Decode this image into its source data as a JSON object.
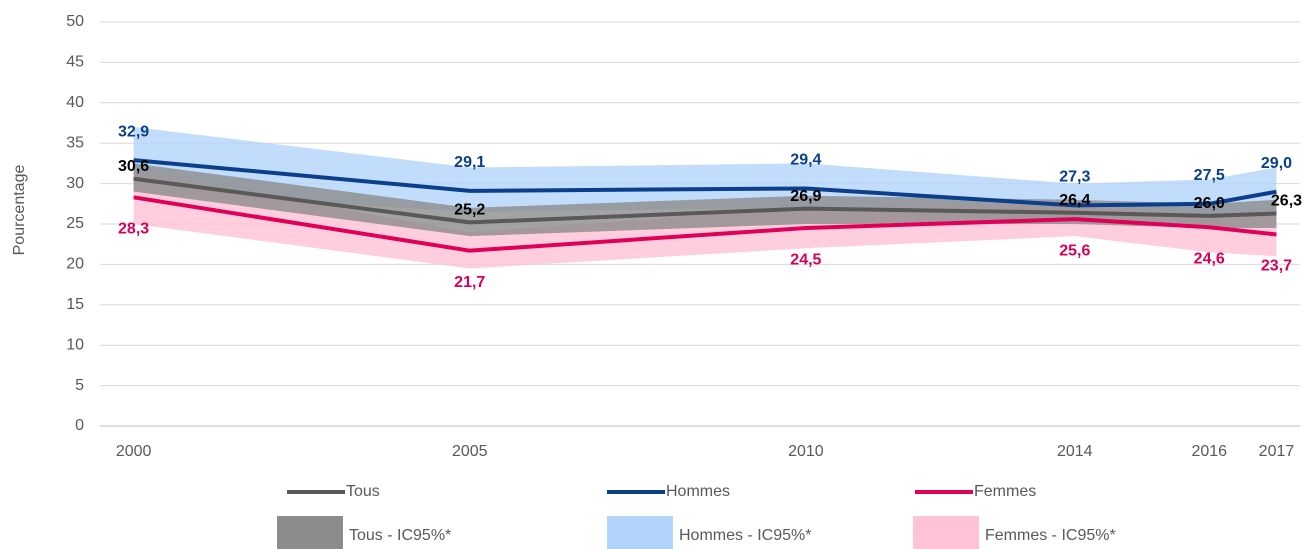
{
  "chart_data": {
    "type": "line",
    "y_label": "Pourcentage",
    "x": [
      2000,
      2005,
      2010,
      2014,
      2016,
      2017
    ],
    "xlim": [
      1999.5,
      2017.35
    ],
    "xticks": [
      2000,
      2005,
      2010,
      2014,
      2016,
      2017
    ],
    "ylim": [
      0,
      50
    ],
    "yticks": [
      0,
      5,
      10,
      15,
      20,
      25,
      30,
      35,
      40,
      45,
      50
    ],
    "grid": true,
    "legend": "bottom",
    "bands": [
      {
        "name": "Hommes - IC95%*",
        "color": "#b3d4fa",
        "lower": [
          29,
          26.5,
          27,
          25,
          25,
          26.5
        ],
        "upper": [
          37,
          32,
          32.5,
          30,
          30.5,
          32
        ]
      },
      {
        "name": "Femmes - IC95%*",
        "color": "#ffc2d6",
        "lower": [
          25,
          19.5,
          22,
          23.5,
          21.5,
          21
        ],
        "upper": [
          31.5,
          24,
          27,
          27.5,
          26,
          26
        ]
      },
      {
        "name": "Tous - IC95%*",
        "color": "#8c8c8c",
        "lower": [
          29,
          23.5,
          25,
          25,
          24.5,
          24.5
        ],
        "upper": [
          32.5,
          27,
          28.5,
          28,
          27.5,
          28
        ]
      }
    ],
    "series": [
      {
        "name": "Tous",
        "color": "#595959",
        "label_color": "#000000",
        "values": [
          30.6,
          25.2,
          26.9,
          26.4,
          26.0,
          26.3
        ],
        "value_labels": [
          "30,6",
          "25,2",
          "26,9",
          "26,4",
          "26,0",
          "26,3"
        ]
      },
      {
        "name": "Hommes",
        "color": "#0b3f8c",
        "label_color": "#0b3f8c",
        "values": [
          32.9,
          29.1,
          29.4,
          27.3,
          27.5,
          29.0
        ],
        "value_labels": [
          "32,9",
          "29,1",
          "29,4",
          "27,3",
          "27,5",
          "29,0"
        ]
      },
      {
        "name": "Femmes",
        "color": "#e0005a",
        "label_color": "#d6005a",
        "values": [
          28.3,
          21.7,
          24.5,
          25.6,
          24.6,
          23.7
        ],
        "value_labels": [
          "28,3",
          "21,7",
          "24,5",
          "25,6",
          "24,6",
          "23,7"
        ]
      }
    ]
  }
}
